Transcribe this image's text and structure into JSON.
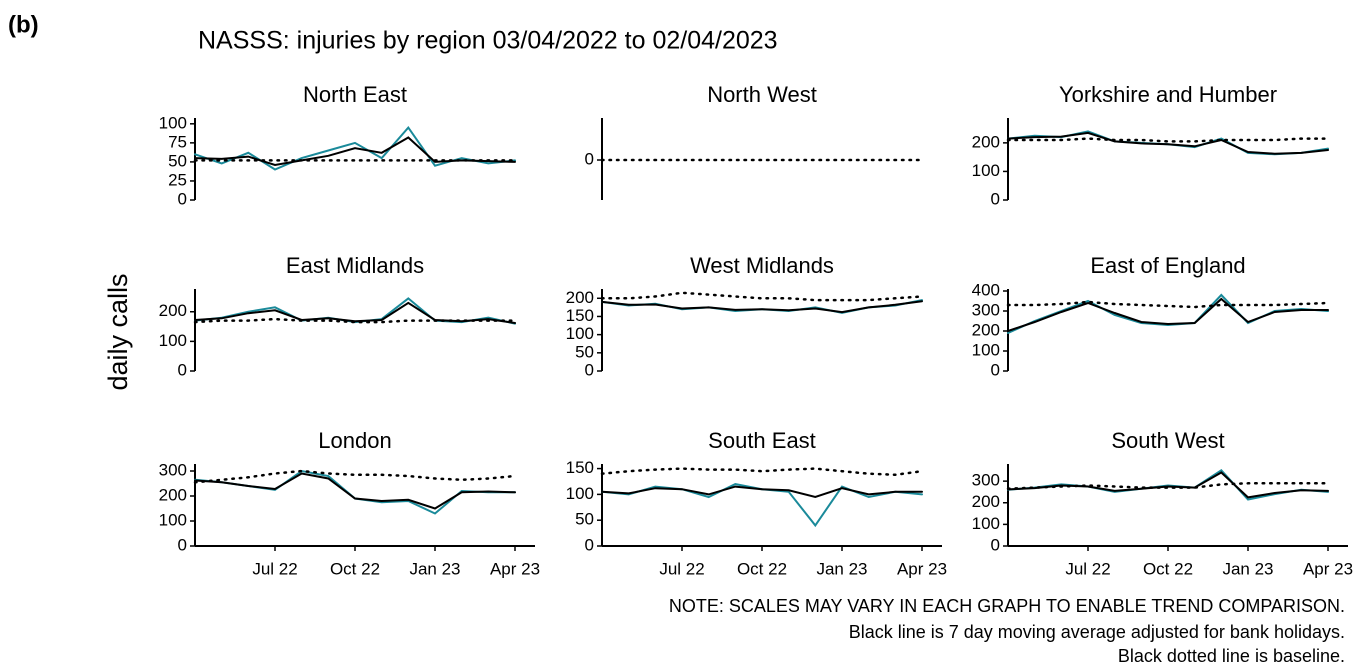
{
  "figure": {
    "label": "(b)",
    "title": "NASSS: injuries by region 03/04/2022 to 02/04/2023",
    "ylabel": "daily calls",
    "notes": [
      "NOTE: SCALES MAY VARY IN EACH GRAPH TO ENABLE TREND COMPARISON.",
      "Black line is 7 day moving average adjusted for bank holidays.",
      "Black dotted line is baseline."
    ]
  },
  "chart_data": [
    {
      "type": "line",
      "title": "North East",
      "x": [
        "2022-04",
        "2022-05",
        "2022-06",
        "2022-07",
        "2022-08",
        "2022-09",
        "2022-10",
        "2022-11",
        "2022-12",
        "2023-01",
        "2023-02",
        "2023-03",
        "2023-04"
      ],
      "ylim": [
        0,
        105
      ],
      "yticks": [
        0,
        25,
        50,
        75,
        100
      ],
      "series": [
        {
          "color": "#1a8a9a",
          "linestyle": "solid",
          "values": [
            60,
            48,
            62,
            40,
            55,
            65,
            75,
            55,
            95,
            45,
            55,
            48,
            52
          ]
        },
        {
          "color": "#000000",
          "linestyle": "solid",
          "values": [
            55,
            54,
            57,
            46,
            52,
            58,
            68,
            62,
            82,
            50,
            52,
            51,
            50
          ]
        },
        {
          "color": "#000000",
          "linestyle": "dotted",
          "values": [
            52,
            52,
            52,
            52,
            52,
            52,
            52,
            52,
            52,
            52,
            52,
            52,
            52
          ]
        }
      ]
    },
    {
      "type": "line",
      "title": "North West",
      "x": [
        "2022-04",
        "2022-05",
        "2022-06",
        "2022-07",
        "2022-08",
        "2022-09",
        "2022-10",
        "2022-11",
        "2022-12",
        "2023-01",
        "2023-02",
        "2023-03",
        "2023-04"
      ],
      "ylim": [
        -1,
        1
      ],
      "yticks": [
        0
      ],
      "series": [
        {
          "color": "#000000",
          "linestyle": "dotted",
          "values": [
            0,
            0,
            0,
            0,
            0,
            0,
            0,
            0,
            0,
            0,
            0,
            0,
            0
          ]
        }
      ]
    },
    {
      "type": "line",
      "title": "Yorkshire and Humber",
      "x": [
        "2022-04",
        "2022-05",
        "2022-06",
        "2022-07",
        "2022-08",
        "2022-09",
        "2022-10",
        "2022-11",
        "2022-12",
        "2023-01",
        "2023-02",
        "2023-03",
        "2023-04"
      ],
      "ylim": [
        0,
        280
      ],
      "yticks": [
        0,
        100,
        200
      ],
      "series": [
        {
          "color": "#1a8a9a",
          "linestyle": "solid",
          "values": [
            215,
            225,
            220,
            240,
            205,
            200,
            195,
            185,
            215,
            165,
            160,
            165,
            180
          ]
        },
        {
          "color": "#000000",
          "linestyle": "solid",
          "values": [
            215,
            220,
            222,
            235,
            205,
            198,
            195,
            188,
            210,
            168,
            162,
            165,
            175
          ]
        },
        {
          "color": "#000000",
          "linestyle": "dotted",
          "values": [
            210,
            210,
            210,
            215,
            210,
            210,
            205,
            205,
            210,
            210,
            210,
            215,
            215
          ]
        }
      ]
    },
    {
      "type": "line",
      "title": "East Midlands",
      "x": [
        "2022-04",
        "2022-05",
        "2022-06",
        "2022-07",
        "2022-08",
        "2022-09",
        "2022-10",
        "2022-11",
        "2022-12",
        "2023-01",
        "2023-02",
        "2023-03",
        "2023-04"
      ],
      "ylim": [
        0,
        270
      ],
      "yticks": [
        0,
        100,
        200
      ],
      "series": [
        {
          "color": "#1a8a9a",
          "linestyle": "solid",
          "values": [
            170,
            180,
            200,
            215,
            170,
            180,
            165,
            175,
            245,
            170,
            165,
            180,
            160
          ]
        },
        {
          "color": "#000000",
          "linestyle": "solid",
          "values": [
            172,
            178,
            195,
            205,
            172,
            178,
            168,
            172,
            230,
            172,
            168,
            175,
            162
          ]
        },
        {
          "color": "#000000",
          "linestyle": "dotted",
          "values": [
            165,
            170,
            170,
            175,
            170,
            170,
            165,
            165,
            170,
            170,
            170,
            170,
            170
          ]
        }
      ]
    },
    {
      "type": "line",
      "title": "West Midlands",
      "x": [
        "2022-04",
        "2022-05",
        "2022-06",
        "2022-07",
        "2022-08",
        "2022-09",
        "2022-10",
        "2022-11",
        "2022-12",
        "2023-01",
        "2023-02",
        "2023-03",
        "2023-04"
      ],
      "ylim": [
        0,
        220
      ],
      "yticks": [
        0,
        50,
        100,
        150,
        200
      ],
      "series": [
        {
          "color": "#1a8a9a",
          "linestyle": "solid",
          "values": [
            190,
            180,
            185,
            170,
            175,
            165,
            170,
            165,
            175,
            160,
            175,
            180,
            195
          ]
        },
        {
          "color": "#000000",
          "linestyle": "solid",
          "values": [
            190,
            182,
            183,
            172,
            175,
            168,
            170,
            167,
            172,
            162,
            175,
            182,
            192
          ]
        },
        {
          "color": "#000000",
          "linestyle": "dotted",
          "values": [
            200,
            200,
            205,
            215,
            210,
            205,
            200,
            200,
            195,
            195,
            195,
            200,
            205
          ]
        }
      ]
    },
    {
      "type": "line",
      "title": "East of England",
      "x": [
        "2022-04",
        "2022-05",
        "2022-06",
        "2022-07",
        "2022-08",
        "2022-09",
        "2022-10",
        "2022-11",
        "2022-12",
        "2023-01",
        "2023-02",
        "2023-03",
        "2023-04"
      ],
      "ylim": [
        0,
        400
      ],
      "yticks": [
        0,
        100,
        200,
        300,
        400
      ],
      "series": [
        {
          "color": "#1a8a9a",
          "linestyle": "solid",
          "values": [
            190,
            250,
            300,
            350,
            280,
            240,
            230,
            240,
            380,
            240,
            300,
            310,
            300
          ]
        },
        {
          "color": "#000000",
          "linestyle": "solid",
          "values": [
            200,
            245,
            295,
            340,
            290,
            245,
            235,
            240,
            360,
            245,
            295,
            305,
            305
          ]
        },
        {
          "color": "#000000",
          "linestyle": "dotted",
          "values": [
            330,
            330,
            335,
            345,
            335,
            330,
            325,
            320,
            330,
            330,
            330,
            335,
            340
          ]
        }
      ]
    },
    {
      "type": "line",
      "title": "London",
      "x": [
        "2022-04",
        "2022-05",
        "2022-06",
        "2022-07",
        "2022-08",
        "2022-09",
        "2022-10",
        "2022-11",
        "2022-12",
        "2023-01",
        "2023-02",
        "2023-03",
        "2023-04"
      ],
      "ylim": [
        0,
        320
      ],
      "yticks": [
        0,
        100,
        200,
        300
      ],
      "xticks": [
        {
          "value": "2022-07",
          "label": "Jul 22"
        },
        {
          "value": "2022-10",
          "label": "Oct 22"
        },
        {
          "value": "2023-01",
          "label": "Jan 23"
        },
        {
          "value": "2023-04",
          "label": "Apr 23"
        }
      ],
      "series": [
        {
          "color": "#1a8a9a",
          "linestyle": "solid",
          "values": [
            265,
            255,
            240,
            225,
            300,
            280,
            190,
            175,
            180,
            130,
            220,
            215,
            215
          ]
        },
        {
          "color": "#000000",
          "linestyle": "solid",
          "values": [
            262,
            255,
            240,
            228,
            290,
            270,
            190,
            180,
            185,
            150,
            215,
            218,
            215
          ]
        },
        {
          "color": "#000000",
          "linestyle": "dotted",
          "values": [
            255,
            265,
            275,
            290,
            300,
            290,
            285,
            285,
            280,
            270,
            265,
            270,
            280
          ]
        }
      ]
    },
    {
      "type": "line",
      "title": "South East",
      "x": [
        "2022-04",
        "2022-05",
        "2022-06",
        "2022-07",
        "2022-08",
        "2022-09",
        "2022-10",
        "2022-11",
        "2022-12",
        "2023-01",
        "2023-02",
        "2023-03",
        "2023-04"
      ],
      "ylim": [
        0,
        155
      ],
      "yticks": [
        0,
        50,
        100,
        150
      ],
      "xticks": [
        {
          "value": "2022-07",
          "label": "Jul 22"
        },
        {
          "value": "2022-10",
          "label": "Oct 22"
        },
        {
          "value": "2023-01",
          "label": "Jan 23"
        },
        {
          "value": "2023-04",
          "label": "Apr 23"
        }
      ],
      "series": [
        {
          "color": "#1a8a9a",
          "linestyle": "solid",
          "values": [
            105,
            100,
            115,
            110,
            95,
            120,
            110,
            105,
            40,
            115,
            95,
            105,
            100
          ]
        },
        {
          "color": "#000000",
          "linestyle": "solid",
          "values": [
            105,
            102,
            112,
            110,
            100,
            115,
            110,
            108,
            95,
            112,
            100,
            105,
            105
          ]
        },
        {
          "color": "#000000",
          "linestyle": "dotted",
          "values": [
            140,
            145,
            148,
            150,
            148,
            148,
            145,
            148,
            150,
            145,
            140,
            138,
            145
          ]
        }
      ]
    },
    {
      "type": "line",
      "title": "South West",
      "x": [
        "2022-04",
        "2022-05",
        "2022-06",
        "2022-07",
        "2022-08",
        "2022-09",
        "2022-10",
        "2022-11",
        "2022-12",
        "2023-01",
        "2023-02",
        "2023-03",
        "2023-04"
      ],
      "ylim": [
        0,
        370
      ],
      "yticks": [
        0,
        100,
        200,
        300
      ],
      "xticks": [
        {
          "value": "2022-07",
          "label": "Jul 22"
        },
        {
          "value": "2022-10",
          "label": "Oct 22"
        },
        {
          "value": "2023-01",
          "label": "Jan 23"
        },
        {
          "value": "2023-04",
          "label": "Apr 23"
        }
      ],
      "series": [
        {
          "color": "#1a8a9a",
          "linestyle": "solid",
          "values": [
            260,
            270,
            285,
            275,
            250,
            265,
            280,
            270,
            350,
            215,
            240,
            260,
            250
          ]
        },
        {
          "color": "#000000",
          "linestyle": "solid",
          "values": [
            262,
            268,
            280,
            275,
            255,
            265,
            275,
            270,
            340,
            225,
            245,
            258,
            255
          ]
        },
        {
          "color": "#000000",
          "linestyle": "dotted",
          "values": [
            265,
            270,
            275,
            280,
            275,
            270,
            270,
            270,
            285,
            290,
            290,
            290,
            290
          ]
        }
      ]
    }
  ]
}
